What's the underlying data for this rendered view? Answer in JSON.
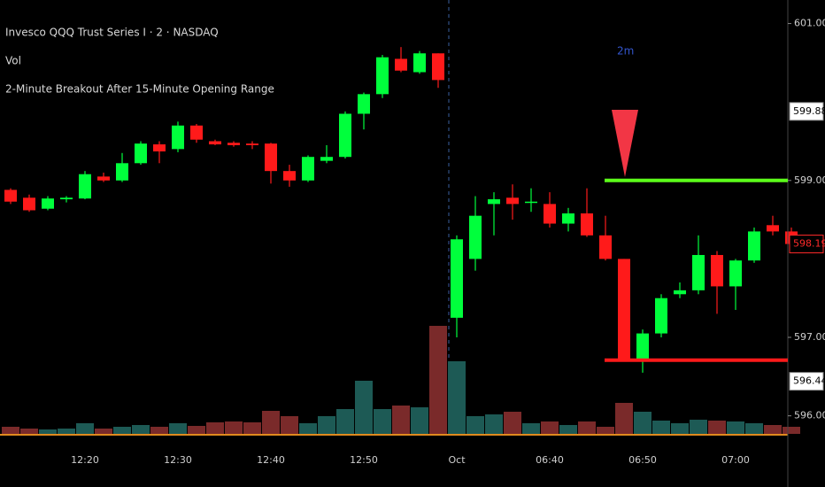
{
  "chart_data": {
    "type": "candlestick",
    "title": "Invesco QQQ Trust Series I · 2 · NASDAQ",
    "volume_label": "Vol",
    "indicator_label": "2-Minute Breakout After 15-Minute Opening Range",
    "signal_label": "2m",
    "categories": [
      null,
      null,
      null,
      null,
      "12:20",
      null,
      null,
      null,
      null,
      "12:30",
      null,
      null,
      null,
      null,
      "12:40",
      null,
      null,
      null,
      null,
      "12:50",
      null,
      null,
      null,
      null,
      "Oct",
      null,
      null,
      null,
      null,
      "06:40",
      null,
      null,
      null,
      null,
      "06:50",
      null,
      null,
      null,
      null,
      "07:00",
      null,
      null,
      null
    ],
    "open": [
      598.88,
      598.78,
      598.64,
      598.76,
      598.77,
      599.05,
      599.0,
      599.22,
      599.46,
      599.4,
      599.7,
      599.5,
      599.48,
      599.47,
      599.47,
      599.12,
      599.0,
      599.25,
      599.3,
      599.85,
      600.1,
      600.55,
      600.38,
      600.62,
      597.25,
      598.0,
      598.7,
      598.78,
      598.72,
      598.7,
      598.45,
      598.58,
      598.3,
      598.0,
      596.7,
      597.05,
      597.55,
      597.6,
      598.05,
      597.65,
      597.98,
      598.43,
      598.35
    ],
    "high": [
      598.9,
      598.82,
      598.8,
      598.8,
      599.12,
      599.1,
      599.35,
      599.5,
      599.5,
      599.75,
      599.72,
      599.52,
      599.5,
      599.5,
      599.48,
      599.2,
      599.32,
      599.45,
      599.88,
      600.12,
      600.6,
      600.7,
      600.65,
      600.62,
      598.3,
      598.8,
      598.85,
      598.95,
      598.9,
      598.85,
      598.65,
      598.9,
      598.55,
      598.0,
      597.1,
      597.55,
      597.7,
      598.3,
      598.1,
      598.0,
      598.4,
      598.55,
      598.4
    ],
    "low": [
      598.7,
      598.6,
      598.62,
      598.72,
      598.76,
      598.98,
      598.98,
      599.2,
      599.22,
      599.36,
      599.48,
      599.45,
      599.43,
      599.4,
      598.96,
      598.92,
      598.98,
      599.22,
      599.28,
      599.65,
      600.05,
      600.38,
      600.36,
      600.18,
      597.0,
      597.85,
      598.3,
      598.5,
      598.6,
      598.4,
      598.35,
      598.28,
      597.98,
      596.7,
      596.55,
      597.0,
      597.5,
      597.55,
      597.3,
      597.35,
      597.95,
      598.3,
      598.1
    ],
    "close": [
      598.73,
      598.62,
      598.77,
      598.78,
      599.08,
      599.0,
      599.22,
      599.47,
      599.37,
      599.7,
      599.52,
      599.46,
      599.45,
      599.45,
      599.12,
      599.0,
      599.3,
      599.3,
      599.85,
      600.1,
      600.57,
      600.4,
      600.62,
      600.28,
      598.25,
      598.55,
      598.76,
      598.7,
      598.73,
      598.45,
      598.58,
      598.3,
      598.0,
      596.7,
      597.05,
      597.5,
      597.6,
      598.05,
      597.65,
      597.98,
      598.35,
      598.35,
      598.19
    ],
    "volume": [
      8,
      6,
      5,
      6,
      12,
      6,
      8,
      10,
      8,
      12,
      9,
      13,
      14,
      13,
      26,
      20,
      12,
      20,
      28,
      60,
      28,
      32,
      30,
      122,
      82,
      20,
      22,
      25,
      12,
      14,
      10,
      14,
      8,
      35,
      25,
      15,
      12,
      16,
      15,
      14,
      12,
      10,
      8
    ],
    "up_color": "#00ff3c",
    "down_color": "#ff1a1a",
    "volume_up_color": "#1d5a55",
    "volume_down_color": "#7a2a2a",
    "ylim": [
      595.77,
      601.3
    ],
    "yticks": [
      {
        "value": 601,
        "label": "601.00"
      },
      {
        "value": 599,
        "label": "599.00"
      },
      {
        "value": 597,
        "label": "597.00"
      },
      {
        "value": 596,
        "label": "596.00"
      }
    ],
    "levels": [
      {
        "value": 599.0,
        "color": "#5cff1a"
      },
      {
        "value": 596.71,
        "color": "#ff1a1a"
      }
    ],
    "price_labels": [
      {
        "value": 599.88,
        "label": "599.88",
        "color": "#000000",
        "fill": "#ffffff"
      },
      {
        "value": 598.19,
        "label": "598.19",
        "color": "#ff2a2a",
        "fill": "#000000"
      },
      {
        "value": 596.44,
        "label": "596.44",
        "color": "#000000",
        "fill": "#ffffff"
      }
    ]
  }
}
